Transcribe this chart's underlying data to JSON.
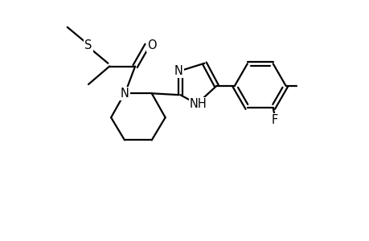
{
  "background_color": "#ffffff",
  "line_color": "#000000",
  "line_width": 1.6,
  "font_size": 10.5,
  "figsize": [
    4.6,
    3.0
  ],
  "dpi": 100,
  "xlim": [
    0,
    10
  ],
  "ylim": [
    0,
    8
  ]
}
